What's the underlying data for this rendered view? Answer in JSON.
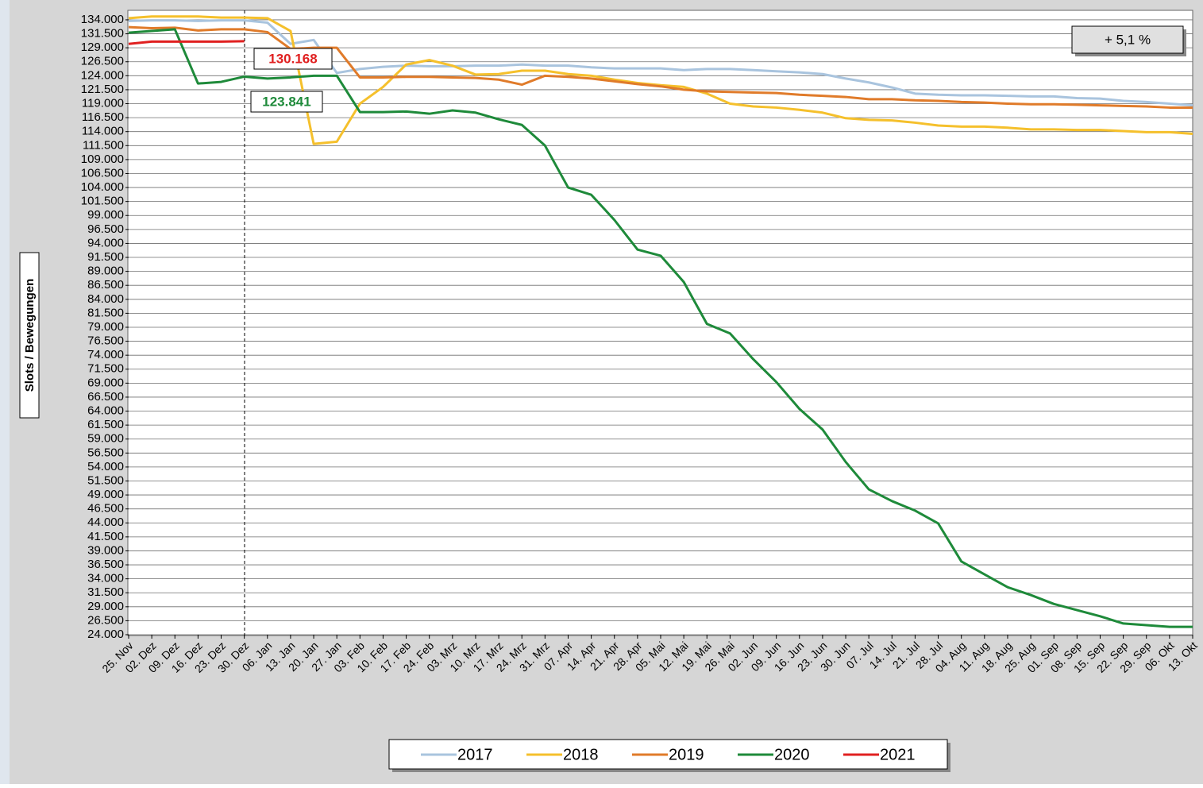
{
  "chart_data": {
    "type": "line",
    "y_label": "Slots / Bewegungen",
    "annotations": [
      "130.168",
      "123.841",
      "+ 5,1 %"
    ],
    "categories": [
      "25. Nov",
      "02. Dez",
      "09. Dez",
      "16. Dez",
      "23. Dez",
      "30. Dez",
      "06. Jan",
      "13. Jan",
      "20. Jan",
      "27. Jan",
      "03. Feb",
      "10. Feb",
      "17. Feb",
      "24. Feb",
      "03. Mrz",
      "10. Mrz",
      "17. Mrz",
      "24. Mrz",
      "31. Mrz",
      "07. Apr",
      "14. Apr",
      "21. Apr",
      "28. Apr",
      "05. Mai",
      "12. Mai",
      "19. Mai",
      "26. Mai",
      "02. Jun",
      "09. Jun",
      "16. Jun",
      "23. Jun",
      "30. Jun",
      "07. Jul",
      "14. Jul",
      "21. Jul",
      "28. Jul",
      "04. Aug",
      "11. Aug",
      "18. Aug",
      "25. Aug",
      "01. Sep",
      "08. Sep",
      "15. Sep",
      "22. Sep",
      "29. Sep",
      "06. Okt",
      "13. Okt"
    ],
    "series": [
      {
        "name": "2017",
        "color": "#a9c4de",
        "values": [
          133800,
          133900,
          133900,
          133800,
          133900,
          133900,
          133500,
          129700,
          130400,
          124500,
          125200,
          125600,
          125800,
          125700,
          125700,
          125800,
          125800,
          126000,
          125800,
          125800,
          125500,
          125300,
          125300,
          125300,
          125000,
          125200,
          125200,
          125000,
          124800,
          124600,
          124300,
          123500,
          122800,
          121900,
          120800,
          120600,
          120500,
          120500,
          120400,
          120300,
          120300,
          120000,
          119900,
          119500,
          119300,
          119000,
          118700
        ]
      },
      {
        "name": "2018",
        "color": "#f5c02c",
        "values": [
          134300,
          134600,
          134600,
          134600,
          134400,
          134400,
          134300,
          132000,
          111800,
          112200,
          119000,
          122000,
          126000,
          126800,
          125800,
          124200,
          124300,
          124900,
          124900,
          124300,
          124000,
          123300,
          122700,
          122300,
          122000,
          120800,
          119000,
          118500,
          118300,
          117900,
          117400,
          116400,
          116100,
          116000,
          115600,
          115100,
          114900,
          114900,
          114700,
          114400,
          114400,
          114300,
          114300,
          114100,
          113900,
          113900,
          113600
        ]
      },
      {
        "name": "2019",
        "color": "#e07b2a",
        "values": [
          132700,
          132500,
          132600,
          132100,
          132300,
          132300,
          131800,
          128800,
          129000,
          129000,
          123700,
          123700,
          123800,
          123800,
          123700,
          123600,
          123300,
          122400,
          124000,
          123800,
          123500,
          123000,
          122500,
          122100,
          121500,
          121200,
          121100,
          121000,
          120900,
          120600,
          120400,
          120200,
          119800,
          119800,
          119600,
          119500,
          119300,
          119200,
          119000,
          118900,
          118900,
          118800,
          118700,
          118600,
          118500,
          118300,
          118300
        ]
      },
      {
        "name": "2020",
        "color": "#1e8a3a",
        "values": [
          131700,
          132000,
          132300,
          122600,
          122900,
          123841,
          123500,
          123700,
          124000,
          124000,
          117500,
          117500,
          117600,
          117200,
          117800,
          117400,
          116200,
          115200,
          111500,
          104000,
          102700,
          98200,
          92900,
          91800,
          87100,
          79600,
          77900,
          73300,
          69200,
          64400,
          60700,
          54900,
          50000,
          47900,
          46200,
          43900,
          37100,
          34800,
          32500,
          31100,
          29500,
          28400,
          27300,
          26000,
          25700,
          25400,
          25400
        ]
      },
      {
        "name": "2021",
        "color": "#e02020",
        "values": [
          129700,
          130100,
          130100,
          130100,
          130100,
          130168,
          null,
          null,
          null,
          null,
          null,
          null,
          null,
          null,
          null,
          null,
          null,
          null,
          null,
          null,
          null,
          null,
          null,
          null,
          null,
          null,
          null,
          null,
          null,
          null,
          null,
          null,
          null,
          null,
          null,
          null,
          null,
          null,
          null,
          null,
          null,
          null,
          null,
          null,
          null,
          null,
          null
        ]
      }
    ],
    "ylim": [
      24000,
      135700
    ],
    "yticks": [
      {
        "value": 24000,
        "label": "24.000"
      },
      {
        "value": 26500,
        "label": "26.500"
      },
      {
        "value": 29000,
        "label": "29.000"
      },
      {
        "value": 31500,
        "label": "31.500"
      },
      {
        "value": 34000,
        "label": "34.000"
      },
      {
        "value": 36500,
        "label": "36.500"
      },
      {
        "value": 39000,
        "label": "39.000"
      },
      {
        "value": 41500,
        "label": "41.500"
      },
      {
        "value": 44000,
        "label": "44.000"
      },
      {
        "value": 46500,
        "label": "46.500"
      },
      {
        "value": 49000,
        "label": "49.000"
      },
      {
        "value": 51500,
        "label": "51.500"
      },
      {
        "value": 54000,
        "label": "54.000"
      },
      {
        "value": 56500,
        "label": "56.500"
      },
      {
        "value": 59000,
        "label": "59.000"
      },
      {
        "value": 61500,
        "label": "61.500"
      },
      {
        "value": 64000,
        "label": "64.000"
      },
      {
        "value": 66500,
        "label": "66.500"
      },
      {
        "value": 69000,
        "label": "69.000"
      },
      {
        "value": 71500,
        "label": "71.500"
      },
      {
        "value": 74000,
        "label": "74.000"
      },
      {
        "value": 76500,
        "label": "76.500"
      },
      {
        "value": 79000,
        "label": "79.000"
      },
      {
        "value": 81500,
        "label": "81.500"
      },
      {
        "value": 84000,
        "label": "84.000"
      },
      {
        "value": 86500,
        "label": "86.500"
      },
      {
        "value": 89000,
        "label": "89.000"
      },
      {
        "value": 91500,
        "label": "91.500"
      },
      {
        "value": 94000,
        "label": "94.000"
      },
      {
        "value": 96500,
        "label": "96.500"
      },
      {
        "value": 99000,
        "label": "99.000"
      },
      {
        "value": 101500,
        "label": "101.500"
      },
      {
        "value": 104000,
        "label": "104.000"
      },
      {
        "value": 106500,
        "label": "106.500"
      },
      {
        "value": 109000,
        "label": "109.000"
      },
      {
        "value": 111500,
        "label": "111.500"
      },
      {
        "value": 114000,
        "label": "114.000"
      },
      {
        "value": 116500,
        "label": "116.500"
      },
      {
        "value": 119000,
        "label": "119.000"
      },
      {
        "value": 121500,
        "label": "121.500"
      },
      {
        "value": 124000,
        "label": "124.000"
      },
      {
        "value": 126500,
        "label": "126.500"
      },
      {
        "value": 129000,
        "label": "129.000"
      },
      {
        "value": 131500,
        "label": "131.500"
      },
      {
        "value": 134000,
        "label": "134.000"
      }
    ],
    "grid": true
  }
}
